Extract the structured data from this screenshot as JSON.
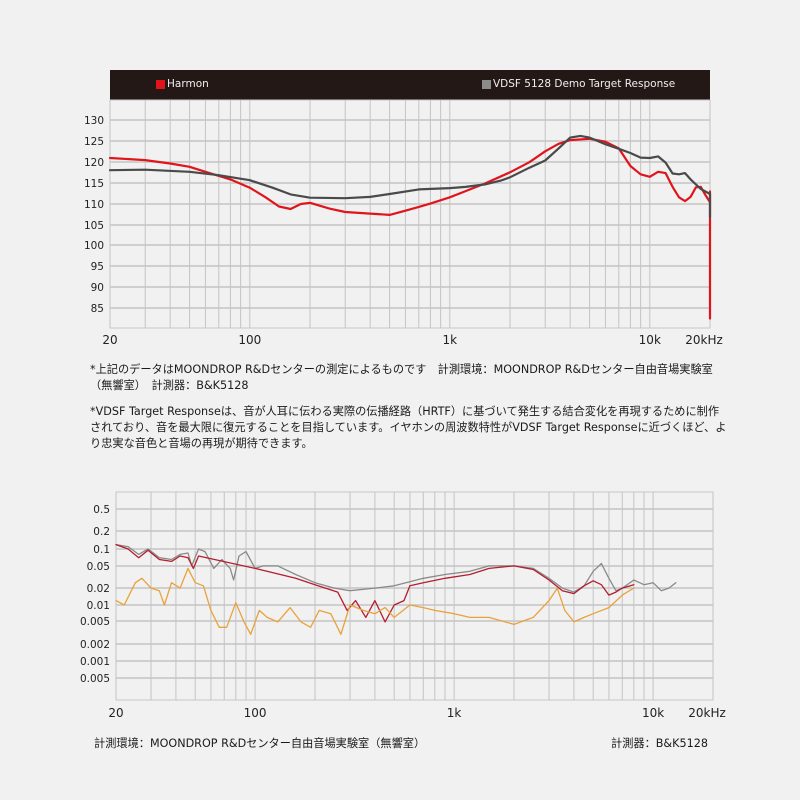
{
  "chart_data": [
    {
      "type": "line",
      "title": "",
      "xlabel": "",
      "ylabel": "",
      "x_scale": "log",
      "xlim": [
        20,
        20000
      ],
      "ylim": [
        81,
        134
      ],
      "grid": true,
      "legend_position": "top",
      "x_tick_labels": [
        "20",
        "100",
        "1k",
        "10k",
        "20kHz"
      ],
      "y_tick_labels": [
        "130",
        "125",
        "120",
        "115",
        "110",
        "105",
        "100",
        "95",
        "90",
        "85"
      ],
      "series": [
        {
          "name": "Harmon",
          "color": "#e0151b",
          "points": [
            [
              20,
              120.9
            ],
            [
              30,
              120.4
            ],
            [
              40,
              119.6
            ],
            [
              50,
              118.8
            ],
            [
              60,
              117.6
            ],
            [
              80,
              115.8
            ],
            [
              100,
              113.8
            ],
            [
              120,
              111.5
            ],
            [
              140,
              109.3
            ],
            [
              160,
              108.7
            ],
            [
              180,
              109.9
            ],
            [
              200,
              110.2
            ],
            [
              250,
              108.8
            ],
            [
              300,
              108.0
            ],
            [
              400,
              107.6
            ],
            [
              500,
              107.3
            ],
            [
              600,
              108.3
            ],
            [
              700,
              109.2
            ],
            [
              800,
              110.0
            ],
            [
              1000,
              111.5
            ],
            [
              1200,
              113.0
            ],
            [
              1500,
              114.8
            ],
            [
              2000,
              117.5
            ],
            [
              2500,
              119.9
            ],
            [
              3000,
              122.5
            ],
            [
              3500,
              124.3
            ],
            [
              4000,
              125.2
            ],
            [
              5000,
              125.5
            ],
            [
              6000,
              124.8
            ],
            [
              7000,
              123.2
            ],
            [
              8000,
              119.0
            ],
            [
              9000,
              117.0
            ],
            [
              10000,
              116.4
            ],
            [
              11000,
              117.6
            ],
            [
              12000,
              117.3
            ],
            [
              13000,
              114.0
            ],
            [
              14000,
              111.5
            ],
            [
              15000,
              110.6
            ],
            [
              16000,
              111.6
            ],
            [
              17000,
              113.9
            ],
            [
              18000,
              114.0
            ],
            [
              19000,
              112.0
            ],
            [
              20000,
              110.3
            ],
            [
              21000,
              110.8
            ],
            [
              22000,
              112.9
            ],
            [
              24000,
              111.4
            ],
            [
              26000,
              109.7
            ],
            [
              28000,
              99.0
            ],
            [
              30000,
              82.5
            ]
          ]
        },
        {
          "name": "VDSF 5128 Demo Target Response",
          "color": "#4a4a4a",
          "points": [
            [
              20,
              118.0
            ],
            [
              30,
              118.1
            ],
            [
              50,
              117.6
            ],
            [
              70,
              116.8
            ],
            [
              100,
              115.6
            ],
            [
              130,
              113.8
            ],
            [
              160,
              112.2
            ],
            [
              200,
              111.4
            ],
            [
              300,
              111.3
            ],
            [
              400,
              111.6
            ],
            [
              500,
              112.3
            ],
            [
              700,
              113.4
            ],
            [
              1000,
              113.7
            ],
            [
              1200,
              114.0
            ],
            [
              1500,
              114.6
            ],
            [
              1800,
              115.5
            ],
            [
              2000,
              116.3
            ],
            [
              2500,
              118.6
            ],
            [
              3000,
              120.3
            ],
            [
              3500,
              123.2
            ],
            [
              4000,
              125.8
            ],
            [
              4500,
              126.2
            ],
            [
              5000,
              125.8
            ],
            [
              6000,
              124.2
            ],
            [
              7000,
              123.1
            ],
            [
              8000,
              122.1
            ],
            [
              9000,
              121.0
            ],
            [
              10000,
              120.9
            ],
            [
              11000,
              121.3
            ],
            [
              12000,
              119.8
            ],
            [
              13000,
              117.2
            ],
            [
              14000,
              117.0
            ],
            [
              15000,
              117.3
            ],
            [
              16000,
              115.8
            ],
            [
              18000,
              113.5
            ],
            [
              20000,
              112.3
            ],
            [
              22000,
              111.0
            ],
            [
              24000,
              110.5
            ],
            [
              26000,
              110.4
            ],
            [
              28000,
              108.8
            ],
            [
              30000,
              106.8
            ]
          ]
        }
      ]
    },
    {
      "type": "line",
      "title": "",
      "xlabel": "",
      "ylabel": "",
      "x_scale": "log",
      "xlim": [
        20,
        20000
      ],
      "grid": true,
      "x_tick_labels": [
        "20",
        "100",
        "1k",
        "10k",
        "20kHz"
      ],
      "y_tick_labels": [
        "0.5",
        "0.2",
        "0.1",
        "0.05",
        "0.02",
        "0.01",
        "0.005",
        "0.002",
        "0.001",
        "0.005"
      ],
      "series": [
        {
          "name": "gray distortion trace",
          "color": "#8a8a8a",
          "points": [
            [
              20,
              0.12
            ],
            [
              23,
              0.11
            ],
            [
              26,
              0.08
            ],
            [
              29,
              0.1
            ],
            [
              33,
              0.07
            ],
            [
              38,
              0.065
            ],
            [
              42,
              0.08
            ],
            [
              46,
              0.085
            ],
            [
              48,
              0.05
            ],
            [
              52,
              0.1
            ],
            [
              56,
              0.09
            ],
            [
              62,
              0.045
            ],
            [
              68,
              0.065
            ],
            [
              75,
              0.045
            ],
            [
              78,
              0.028
            ],
            [
              83,
              0.075
            ],
            [
              90,
              0.09
            ],
            [
              100,
              0.045
            ],
            [
              110,
              0.05
            ],
            [
              130,
              0.05
            ],
            [
              160,
              0.035
            ],
            [
              200,
              0.025
            ],
            [
              250,
              0.02
            ],
            [
              300,
              0.018
            ],
            [
              400,
              0.02
            ],
            [
              500,
              0.022
            ],
            [
              700,
              0.03
            ],
            [
              900,
              0.035
            ],
            [
              1200,
              0.04
            ],
            [
              1500,
              0.05
            ],
            [
              2000,
              0.05
            ],
            [
              2500,
              0.045
            ],
            [
              3000,
              0.03
            ],
            [
              3500,
              0.02
            ],
            [
              4000,
              0.017
            ],
            [
              4500,
              0.022
            ],
            [
              5000,
              0.04
            ],
            [
              5500,
              0.055
            ],
            [
              6000,
              0.03
            ],
            [
              6500,
              0.018
            ],
            [
              7000,
              0.02
            ],
            [
              8000,
              0.028
            ],
            [
              9000,
              0.023
            ],
            [
              10000,
              0.025
            ],
            [
              11000,
              0.018
            ],
            [
              12000,
              0.02
            ],
            [
              13000,
              0.025
            ]
          ]
        },
        {
          "name": "red distortion trace",
          "color": "#b51d2e",
          "points": [
            [
              20,
              0.12
            ],
            [
              23,
              0.1
            ],
            [
              26,
              0.07
            ],
            [
              29,
              0.095
            ],
            [
              33,
              0.065
            ],
            [
              38,
              0.06
            ],
            [
              42,
              0.075
            ],
            [
              46,
              0.07
            ],
            [
              49,
              0.045
            ],
            [
              52,
              0.075
            ],
            [
              100,
              0.045
            ],
            [
              160,
              0.03
            ],
            [
              200,
              0.023
            ],
            [
              260,
              0.017
            ],
            [
              290,
              0.008
            ],
            [
              320,
              0.012
            ],
            [
              360,
              0.006
            ],
            [
              400,
              0.012
            ],
            [
              450,
              0.005
            ],
            [
              500,
              0.01
            ],
            [
              560,
              0.012
            ],
            [
              600,
              0.022
            ],
            [
              700,
              0.025
            ],
            [
              900,
              0.03
            ],
            [
              1200,
              0.035
            ],
            [
              1500,
              0.045
            ],
            [
              2000,
              0.05
            ],
            [
              2500,
              0.043
            ],
            [
              3000,
              0.028
            ],
            [
              3500,
              0.018
            ],
            [
              4000,
              0.016
            ],
            [
              4500,
              0.022
            ],
            [
              5000,
              0.027
            ],
            [
              5500,
              0.023
            ],
            [
              6000,
              0.015
            ],
            [
              6500,
              0.017
            ],
            [
              7000,
              0.02
            ],
            [
              8000,
              0.023
            ]
          ]
        },
        {
          "name": "orange distortion trace",
          "color": "#e9a23b",
          "points": [
            [
              20,
              0.012
            ],
            [
              22,
              0.01
            ],
            [
              25,
              0.025
            ],
            [
              27,
              0.03
            ],
            [
              30,
              0.02
            ],
            [
              33,
              0.018
            ],
            [
              35,
              0.01
            ],
            [
              38,
              0.025
            ],
            [
              42,
              0.02
            ],
            [
              46,
              0.045
            ],
            [
              50,
              0.025
            ],
            [
              55,
              0.022
            ],
            [
              60,
              0.008
            ],
            [
              66,
              0.004
            ],
            [
              72,
              0.004
            ],
            [
              80,
              0.011
            ],
            [
              88,
              0.005
            ],
            [
              95,
              0.003
            ],
            [
              105,
              0.008
            ],
            [
              115,
              0.006
            ],
            [
              130,
              0.005
            ],
            [
              150,
              0.009
            ],
            [
              170,
              0.005
            ],
            [
              190,
              0.004
            ],
            [
              210,
              0.008
            ],
            [
              240,
              0.007
            ],
            [
              270,
              0.003
            ],
            [
              300,
              0.01
            ],
            [
              350,
              0.008
            ],
            [
              400,
              0.007
            ],
            [
              450,
              0.009
            ],
            [
              500,
              0.006
            ],
            [
              600,
              0.01
            ],
            [
              700,
              0.009
            ],
            [
              800,
              0.008
            ],
            [
              1000,
              0.007
            ],
            [
              1200,
              0.006
            ],
            [
              1500,
              0.006
            ],
            [
              2000,
              0.0045
            ],
            [
              2500,
              0.006
            ],
            [
              3000,
              0.012
            ],
            [
              3300,
              0.02
            ],
            [
              3600,
              0.008
            ],
            [
              4000,
              0.005
            ],
            [
              4500,
              0.006
            ],
            [
              5000,
              0.007
            ],
            [
              6000,
              0.009
            ],
            [
              7000,
              0.015
            ],
            [
              8000,
              0.02
            ]
          ]
        }
      ]
    }
  ],
  "legend": {
    "items": [
      {
        "label": "Harmon",
        "color": "#e0151b"
      },
      {
        "label": "VDSF 5128 Demo Target Response",
        "color": "#8c8c8c"
      }
    ]
  },
  "chart1": {
    "y_ticks": [
      "130",
      "125",
      "120",
      "115",
      "110",
      "105",
      "100",
      "95",
      "90",
      "85"
    ],
    "x_ticks": [
      "20",
      "100",
      "1k",
      "10k",
      "20kHz"
    ]
  },
  "chart2": {
    "y_ticks": [
      "0.5",
      "0.2",
      "0.1",
      "0.05",
      "0.02",
      "0.01",
      "0.005",
      "0.002",
      "0.001",
      "0.005"
    ],
    "x_ticks": [
      "20",
      "100",
      "1k",
      "10k",
      "20kHz"
    ]
  },
  "notes": {
    "note1": "*上記のデータはMOONDROP R&Dセンターの測定によるものです　計測環境：MOONDROP R&Dセンター自由音場実験室（無響室）　計測器：B&K5128",
    "note2": "*VDSF Target Responseは、音が人耳に伝わる実際の伝播経路（HRTF）に基づいて発生する結合変化を再現するために制作されており、音を最大限に復元することを目指しています。イヤホンの周波数特性がVDSF Target Responseに近づくほど、より忠実な音色と音場の再現が期待できます。"
  },
  "footer": {
    "environment": "計測環境：MOONDROP R&Dセンター自由音場実験室（無響室）",
    "instrument": "計測器：B&K5128"
  }
}
